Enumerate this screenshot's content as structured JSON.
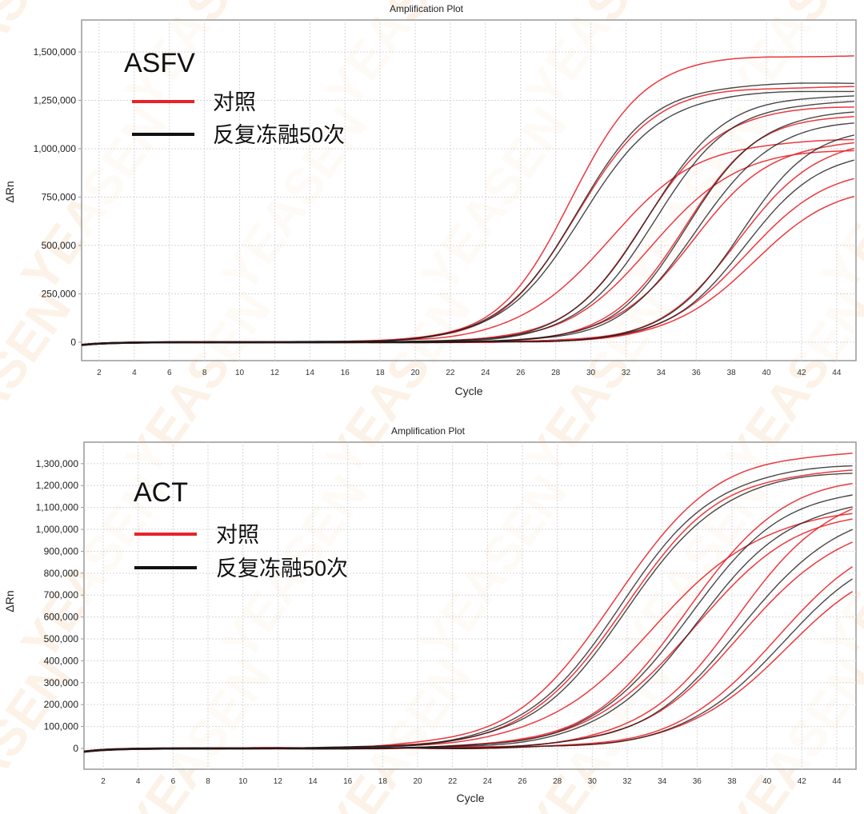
{
  "watermark": "YEASEN",
  "colors": {
    "control": "#e8232a",
    "ft50": "#1a1a1a",
    "grid": "#d6d6d6",
    "axis": "#999999"
  },
  "chart_data": [
    {
      "type": "line",
      "title": "Amplification Plot",
      "gene_label": "ASFV",
      "xlabel": "Cycle",
      "ylabel": "ΔRn",
      "xlim": [
        1,
        45.1
      ],
      "ylim": [
        -95000,
        1665000
      ],
      "xticks": [
        2,
        4,
        6,
        8,
        10,
        12,
        14,
        16,
        18,
        20,
        22,
        24,
        26,
        28,
        30,
        32,
        34,
        36,
        38,
        40,
        42,
        44
      ],
      "yticks": [
        0,
        250000,
        500000,
        750000,
        1000000,
        1250000,
        1500000
      ],
      "ytick_labels": [
        "0",
        "250,000",
        "500,000",
        "750,000",
        "1,000,000",
        "1,250,000",
        "1,500,000"
      ],
      "grid": true,
      "legend": {
        "position": "top-left",
        "entries": [
          {
            "label": "对照",
            "group": "control"
          },
          {
            "label": "反复冻融50次",
            "group": "ft50"
          }
        ]
      },
      "curve_model": "logistic: plateau / (1 + exp(-(cycle - midpoint_cycle)/slope))",
      "series": [
        {
          "group": "control",
          "midpoint_cycle": 28.9,
          "plateau": 1480000,
          "slope": 2.1
        },
        {
          "group": "control",
          "midpoint_cycle": 29.2,
          "plateau": 1320000,
          "slope": 2.2
        },
        {
          "group": "control",
          "midpoint_cycle": 31.0,
          "plateau": 1050000,
          "slope": 2.6
        },
        {
          "group": "control",
          "midpoint_cycle": 33.0,
          "plateau": 1220000,
          "slope": 2.2
        },
        {
          "group": "control",
          "midpoint_cycle": 33.5,
          "plateau": 1000000,
          "slope": 2.4
        },
        {
          "group": "control",
          "midpoint_cycle": 35.3,
          "plateau": 1180000,
          "slope": 2.1
        },
        {
          "group": "control",
          "midpoint_cycle": 35.8,
          "plateau": 1050000,
          "slope": 2.3
        },
        {
          "group": "control",
          "midpoint_cycle": 38.4,
          "plateau": 1050000,
          "slope": 2.2
        },
        {
          "group": "control",
          "midpoint_cycle": 38.8,
          "plateau": 900000,
          "slope": 2.3
        },
        {
          "group": "control",
          "midpoint_cycle": 39.2,
          "plateau": 820000,
          "slope": 2.4
        },
        {
          "group": "ft50",
          "midpoint_cycle": 29.2,
          "plateau": 1340000,
          "slope": 2.2
        },
        {
          "group": "ft50",
          "midpoint_cycle": 29.5,
          "plateau": 1300000,
          "slope": 2.3
        },
        {
          "group": "ft50",
          "midpoint_cycle": 33.2,
          "plateau": 1280000,
          "slope": 2.2
        },
        {
          "group": "ft50",
          "midpoint_cycle": 33.6,
          "plateau": 1250000,
          "slope": 2.2
        },
        {
          "group": "ft50",
          "midpoint_cycle": 35.5,
          "plateau": 1200000,
          "slope": 2.1
        },
        {
          "group": "ft50",
          "midpoint_cycle": 36.0,
          "plateau": 1150000,
          "slope": 2.2
        },
        {
          "group": "ft50",
          "midpoint_cycle": 38.5,
          "plateau": 1120000,
          "slope": 2.1
        },
        {
          "group": "ft50",
          "midpoint_cycle": 38.8,
          "plateau": 1000000,
          "slope": 2.2
        }
      ]
    },
    {
      "type": "line",
      "title": "Amplification Plot",
      "gene_label": "ACT",
      "xlabel": "Cycle",
      "ylabel": "ΔRn",
      "xlim": [
        0.9,
        45.1
      ],
      "ylim": [
        -95000,
        1398000
      ],
      "xticks": [
        2,
        4,
        6,
        8,
        10,
        12,
        14,
        16,
        18,
        20,
        22,
        24,
        26,
        28,
        30,
        32,
        34,
        36,
        38,
        40,
        42,
        44
      ],
      "yticks": [
        0,
        100000,
        200000,
        300000,
        400000,
        500000,
        600000,
        700000,
        800000,
        900000,
        1000000,
        1100000,
        1200000,
        1300000
      ],
      "ytick_labels": [
        "0",
        "100,000",
        "200,000",
        "300,000",
        "400,000",
        "500,000",
        "600,000",
        "700,000",
        "800,000",
        "900,000",
        "1,000,000",
        "1,100,000",
        "1,200,000",
        "1,300,000"
      ],
      "grid": true,
      "legend": {
        "position": "top-left",
        "entries": [
          {
            "label": "对照",
            "group": "control"
          },
          {
            "label": "反复冻融50次",
            "group": "ft50"
          }
        ]
      },
      "curve_model": "logistic: plateau / (1 + exp(-(cycle - midpoint_cycle)/slope))",
      "series": [
        {
          "group": "control",
          "midpoint_cycle": 31.3,
          "plateau": 1360000,
          "slope": 2.9
        },
        {
          "group": "control",
          "midpoint_cycle": 31.8,
          "plateau": 1280000,
          "slope": 2.8
        },
        {
          "group": "control",
          "midpoint_cycle": 33.5,
          "plateau": 1100000,
          "slope": 3.2
        },
        {
          "group": "control",
          "midpoint_cycle": 35.4,
          "plateau": 1250000,
          "slope": 2.8
        },
        {
          "group": "control",
          "midpoint_cycle": 35.8,
          "plateau": 1100000,
          "slope": 3.0
        },
        {
          "group": "control",
          "midpoint_cycle": 38.3,
          "plateau": 1200000,
          "slope": 2.8
        },
        {
          "group": "control",
          "midpoint_cycle": 38.6,
          "plateau": 1050000,
          "slope": 2.9
        },
        {
          "group": "control",
          "midpoint_cycle": 40.5,
          "plateau": 1000000,
          "slope": 2.8
        },
        {
          "group": "control",
          "midpoint_cycle": 41.0,
          "plateau": 900000,
          "slope": 2.9
        },
        {
          "group": "ft50",
          "midpoint_cycle": 31.6,
          "plateau": 1300000,
          "slope": 2.8
        },
        {
          "group": "ft50",
          "midpoint_cycle": 32.0,
          "plateau": 1270000,
          "slope": 2.8
        },
        {
          "group": "ft50",
          "midpoint_cycle": 35.5,
          "plateau": 1200000,
          "slope": 2.8
        },
        {
          "group": "ft50",
          "midpoint_cycle": 36.0,
          "plateau": 1150000,
          "slope": 2.8
        },
        {
          "group": "ft50",
          "midpoint_cycle": 38.5,
          "plateau": 1100000,
          "slope": 2.8
        },
        {
          "group": "ft50",
          "midpoint_cycle": 40.8,
          "plateau": 950000,
          "slope": 2.8
        }
      ]
    }
  ]
}
